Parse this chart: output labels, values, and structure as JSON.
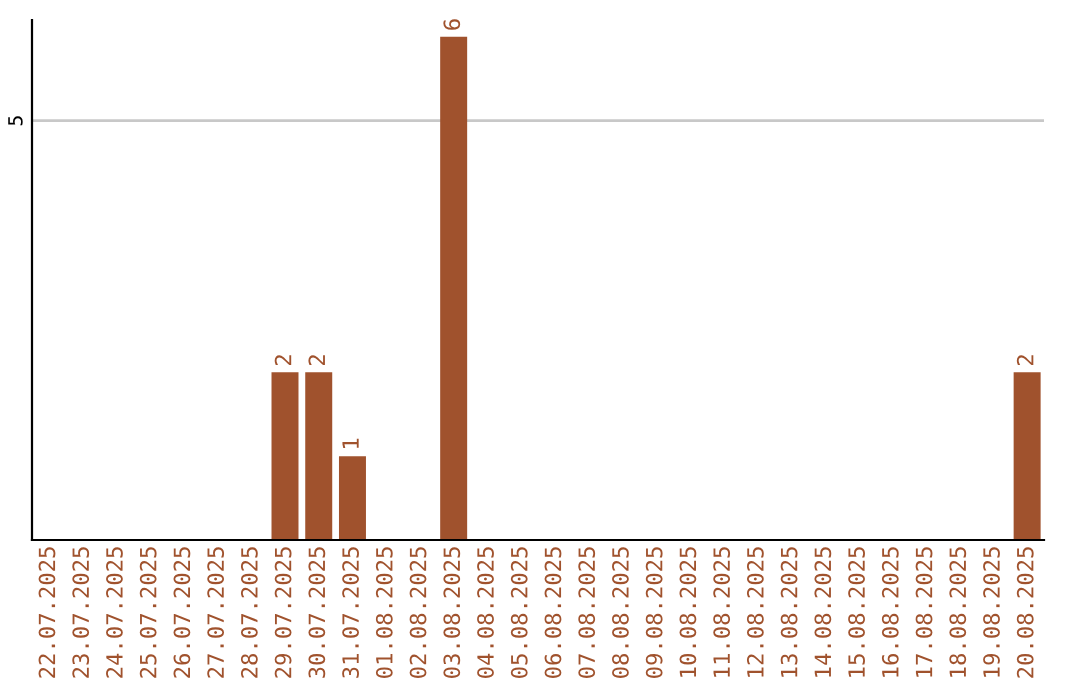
{
  "chart_data": {
    "type": "bar",
    "categories": [
      "22.07.2025",
      "23.07.2025",
      "24.07.2025",
      "25.07.2025",
      "26.07.2025",
      "27.07.2025",
      "28.07.2025",
      "29.07.2025",
      "30.07.2025",
      "31.07.2025",
      "01.08.2025",
      "02.08.2025",
      "03.08.2025",
      "04.08.2025",
      "05.08.2025",
      "06.08.2025",
      "07.08.2025",
      "08.08.2025",
      "09.08.2025",
      "10.08.2025",
      "11.08.2025",
      "12.08.2025",
      "13.08.2025",
      "14.08.2025",
      "15.08.2025",
      "16.08.2025",
      "17.08.2025",
      "18.08.2025",
      "19.08.2025",
      "20.08.2025"
    ],
    "values": [
      0,
      0,
      0,
      0,
      0,
      0,
      0,
      2,
      2,
      1,
      0,
      0,
      6,
      0,
      0,
      0,
      0,
      0,
      0,
      0,
      0,
      0,
      0,
      0,
      0,
      0,
      0,
      0,
      0,
      2
    ],
    "value_labels": [
      null,
      null,
      null,
      null,
      null,
      null,
      null,
      "2",
      "2",
      "1",
      null,
      null,
      "6",
      null,
      null,
      null,
      null,
      null,
      null,
      null,
      null,
      null,
      null,
      null,
      null,
      null,
      null,
      null,
      null,
      "2"
    ],
    "color": "#a0522d",
    "ylim": [
      0,
      6.2
    ],
    "yticks": [
      5
    ],
    "grid": "y"
  }
}
